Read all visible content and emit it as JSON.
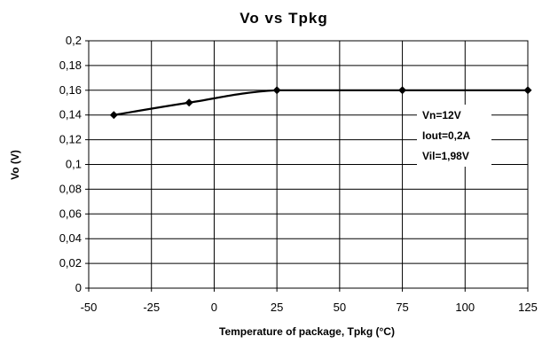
{
  "chart_data": {
    "type": "line",
    "title": "Vo  vs  Tpkg",
    "xlabel": "Temperature of package, Tpkg (°C)",
    "ylabel": "Vo (V)",
    "xlim": [
      -50,
      125
    ],
    "ylim": [
      0,
      0.2
    ],
    "x_ticks": [
      -50,
      -25,
      0,
      25,
      50,
      75,
      100,
      125
    ],
    "x_tick_labels": [
      "-50",
      "-25",
      "0",
      "25",
      "50",
      "75",
      "100",
      "125"
    ],
    "y_ticks": [
      0,
      0.02,
      0.04,
      0.06,
      0.08,
      0.1,
      0.12,
      0.14,
      0.16,
      0.18,
      0.2
    ],
    "y_tick_labels": [
      "0",
      "0,02",
      "0,04",
      "0,06",
      "0,08",
      "0,1",
      "0,12",
      "0,14",
      "0,16",
      "0,18",
      "0,2"
    ],
    "grid": true,
    "series": [
      {
        "x": [
          -40,
          -10,
          25,
          75,
          125
        ],
        "y": [
          0.14,
          0.15,
          0.16,
          0.16,
          0.16
        ],
        "marker": "diamond",
        "color": "#000000"
      }
    ],
    "annotations": [
      "Vn=12V",
      "Iout=0,2A",
      "Vil=1,98V"
    ]
  }
}
